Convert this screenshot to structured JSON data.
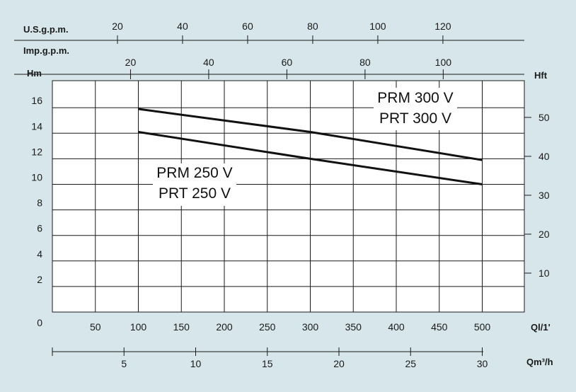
{
  "chart_data": {
    "type": "line",
    "units": {
      "usgpm": "U.S.g.p.m.",
      "impgpm": "Imp.g.p.m.",
      "hm": "Hm",
      "hft": "Hft",
      "ql": "Ql/1'",
      "qm3": "Qm³/h"
    },
    "axes": {
      "usgpm_ticks": [
        20,
        40,
        60,
        80,
        100,
        120
      ],
      "impgpm_ticks": [
        20,
        40,
        60,
        80,
        100
      ],
      "hm_ticks": [
        0,
        2,
        4,
        6,
        8,
        10,
        12,
        14,
        16
      ],
      "hft_ticks": [
        10,
        20,
        30,
        40,
        50
      ],
      "ql_ticks": [
        50,
        100,
        150,
        200,
        250,
        300,
        350,
        400,
        450,
        500
      ],
      "qm3_ticks": [
        5,
        10,
        15,
        20,
        25,
        30
      ],
      "xlim": [
        0,
        540
      ],
      "ylim": [
        0,
        18.5
      ],
      "grid": true
    },
    "series": [
      {
        "name": "PRM 300 V",
        "name2": "PRT 300 V",
        "x": [
          100,
          300,
          500
        ],
        "y": [
          15.9,
          14.1,
          11.9
        ]
      },
      {
        "name": "PRM 250 V",
        "name2": "PRT 250 V",
        "x": [
          100,
          300,
          500
        ],
        "y": [
          14.1,
          12.0,
          10.0
        ]
      }
    ],
    "colors": {
      "background": "#d7e6ea",
      "plot_area": "#ffffff",
      "line": "#111111"
    }
  }
}
